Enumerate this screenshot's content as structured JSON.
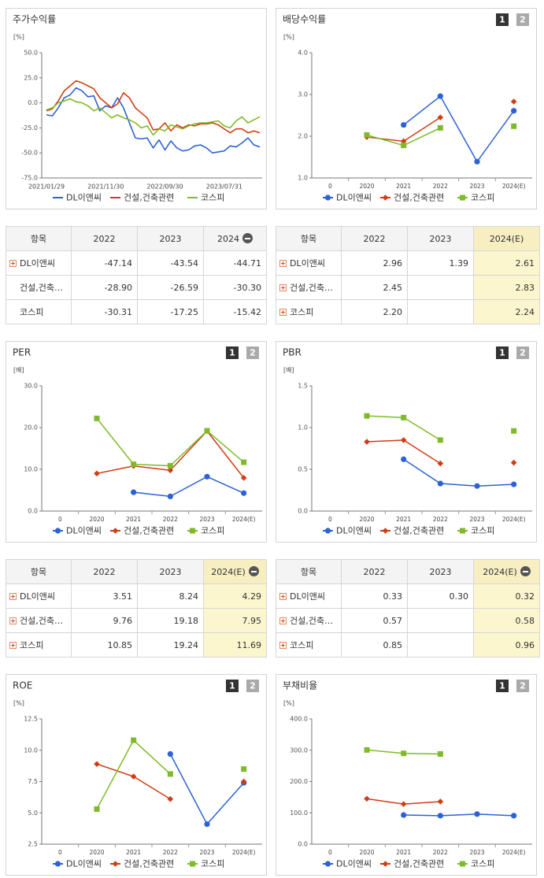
{
  "chart_data": [
    {
      "type": "line",
      "title": "주가수익률",
      "unit": "[%]",
      "categories": [
        "2021/01/29",
        null,
        null,
        null,
        null,
        null,
        null,
        null,
        null,
        null,
        "2021/11/30",
        null,
        null,
        null,
        null,
        null,
        null,
        null,
        null,
        null,
        "2022/09/30",
        null,
        null,
        null,
        null,
        null,
        null,
        null,
        null,
        null,
        "2023/07/31",
        null,
        null,
        null,
        null,
        null,
        null
      ],
      "series": [
        {
          "name": "DL이앤씨",
          "color": "#2c62d6",
          "values": [
            -12,
            -13,
            -5,
            5,
            8,
            15,
            12,
            6,
            7,
            -8,
            -3,
            -5,
            5,
            -5,
            -20,
            -35,
            -36,
            -35,
            -45,
            -37,
            -47,
            -38,
            -45,
            -48,
            -47,
            -43,
            -42,
            -45,
            -50,
            -49,
            -48,
            -43,
            -44,
            -40,
            -35,
            -42,
            -44
          ]
        },
        {
          "name": "건설,건축관련",
          "color": "#d03d14",
          "values": [
            -8,
            -6,
            2,
            12,
            17,
            22,
            20,
            17,
            14,
            5,
            0,
            -5,
            -1,
            10,
            5,
            -5,
            -10,
            -15,
            -27,
            -26,
            -20,
            -28,
            -22,
            -25,
            -22,
            -23,
            -21,
            -21,
            -20,
            -22,
            -26,
            -30,
            -26,
            -26,
            -30,
            -28,
            -30
          ]
        },
        {
          "name": "코스피",
          "color": "#7fba2a",
          "values": [
            -7,
            -5,
            0,
            2,
            4,
            1,
            0,
            -3,
            -8,
            -5,
            -10,
            -15,
            -12,
            -15,
            -17,
            -20,
            -25,
            -23,
            -32,
            -26,
            -28,
            -22,
            -24,
            -26,
            -23,
            -21,
            -20,
            -20,
            -19,
            -18,
            -23,
            -25,
            -18,
            -14,
            -20,
            -17,
            -14
          ]
        }
      ],
      "ylim": [
        -75,
        50
      ],
      "yticks": [
        {
          "value": 50,
          "label": "50.0"
        },
        {
          "value": 25,
          "label": "25.0"
        },
        {
          "value": 0,
          "label": "0.0"
        },
        {
          "value": -25,
          "label": "-25.0"
        },
        {
          "value": -50,
          "label": "-50.0"
        },
        {
          "value": -75,
          "label": "-75.0"
        }
      ],
      "legend": "bottom"
    },
    {
      "type": "line-marker",
      "title": "배당수익률",
      "buttons": [
        "1",
        "2"
      ],
      "unit": "[%]",
      "categories": [
        "0",
        "2020",
        "2021",
        "2022",
        "2023",
        "2024(E)"
      ],
      "series": [
        {
          "name": "DL이앤씨",
          "color": "#2c62d6",
          "marker": "circle",
          "values": [
            null,
            null,
            2.27,
            2.96,
            1.39,
            2.61
          ]
        },
        {
          "name": "건설,건축관련",
          "color": "#d03d14",
          "marker": "diamond",
          "values": [
            null,
            1.98,
            1.88,
            2.45,
            null,
            2.83
          ]
        },
        {
          "name": "코스피",
          "color": "#7fba2a",
          "marker": "square",
          "values": [
            null,
            2.03,
            1.78,
            2.2,
            null,
            2.24
          ]
        }
      ],
      "ylim": [
        1,
        4
      ],
      "yticks": [
        {
          "value": 4,
          "label": "4.0"
        },
        {
          "value": 3,
          "label": "3.0"
        },
        {
          "value": 2,
          "label": "2.0"
        },
        {
          "value": 1,
          "label": "1.0"
        }
      ],
      "legend": "bottom"
    },
    {
      "type": "line-marker",
      "title": "PER",
      "buttons": [
        "1",
        "2"
      ],
      "unit": "[배]",
      "categories": [
        "0",
        "2020",
        "2021",
        "2022",
        "2023",
        "2024(E)"
      ],
      "series": [
        {
          "name": "DL이앤씨",
          "color": "#2c62d6",
          "marker": "circle",
          "values": [
            null,
            null,
            4.5,
            3.51,
            8.24,
            4.29
          ]
        },
        {
          "name": "건설,건축관련",
          "color": "#d03d14",
          "marker": "diamond",
          "values": [
            null,
            9,
            10.8,
            9.76,
            19.18,
            7.95
          ]
        },
        {
          "name": "코스피",
          "color": "#7fba2a",
          "marker": "square",
          "values": [
            null,
            22.2,
            11.2,
            10.85,
            19.24,
            11.69
          ]
        }
      ],
      "ylim": [
        0,
        30
      ],
      "yticks": [
        {
          "value": 30,
          "label": "30.0"
        },
        {
          "value": 20,
          "label": "20.0"
        },
        {
          "value": 10,
          "label": "10.0"
        },
        {
          "value": 0,
          "label": "0.0"
        }
      ],
      "legend": "bottom"
    },
    {
      "type": "line-marker",
      "title": "PBR",
      "buttons": [
        "1",
        "2"
      ],
      "unit": "[배]",
      "categories": [
        "0",
        "2020",
        "2021",
        "2022",
        "2023",
        "2024(E)"
      ],
      "series": [
        {
          "name": "DL이앤씨",
          "color": "#2c62d6",
          "marker": "circle",
          "values": [
            null,
            null,
            0.62,
            0.33,
            0.3,
            0.32
          ]
        },
        {
          "name": "건설,건축관련",
          "color": "#d03d14",
          "marker": "diamond",
          "values": [
            null,
            0.83,
            0.85,
            0.57,
            null,
            0.58
          ]
        },
        {
          "name": "코스피",
          "color": "#7fba2a",
          "marker": "square",
          "values": [
            null,
            1.14,
            1.12,
            0.85,
            null,
            0.96
          ]
        }
      ],
      "ylim": [
        0,
        1.5
      ],
      "yticks": [
        1.5,
        {
          "value": 1,
          "label": "1.0"
        },
        0.5,
        {
          "value": 0,
          "label": "0.0"
        }
      ],
      "legend": "bottom"
    },
    {
      "type": "line-marker",
      "title": "ROE",
      "buttons": [
        "1",
        "2"
      ],
      "unit": "[%]",
      "categories": [
        "0",
        "2020",
        "2021",
        "2022",
        "2023",
        "2024(E)"
      ],
      "series": [
        {
          "name": "DL이앤씨",
          "color": "#2c62d6",
          "marker": "circle",
          "values": [
            null,
            null,
            null,
            9.7,
            4.1,
            7.4
          ]
        },
        {
          "name": "건설,건축관련",
          "color": "#d03d14",
          "marker": "diamond",
          "values": [
            null,
            8.9,
            7.9,
            6.1,
            null,
            7.5
          ]
        },
        {
          "name": "코스피",
          "color": "#7fba2a",
          "marker": "square",
          "values": [
            null,
            5.3,
            10.8,
            8.1,
            null,
            8.5
          ]
        }
      ],
      "ylim": [
        2.5,
        12.5
      ],
      "yticks": [
        12.5,
        {
          "value": 10,
          "label": "10.0"
        },
        7.5,
        {
          "value": 5,
          "label": "5.0"
        },
        2.5
      ],
      "legend": "bottom"
    },
    {
      "type": "line-marker",
      "title": "부채비율",
      "buttons": [
        "1",
        "2"
      ],
      "unit": "[%]",
      "categories": [
        "0",
        "2020",
        "2021",
        "2022",
        "2023",
        "2024(E)"
      ],
      "series": [
        {
          "name": "DL이앤씨",
          "color": "#2c62d6",
          "marker": "circle",
          "values": [
            null,
            null,
            93,
            91,
            96,
            91
          ]
        },
        {
          "name": "건설,건축관련",
          "color": "#d03d14",
          "marker": "diamond",
          "values": [
            null,
            145,
            128,
            136,
            null,
            null
          ]
        },
        {
          "name": "코스피",
          "color": "#7fba2a",
          "marker": "square",
          "values": [
            null,
            301,
            290,
            288,
            null,
            null
          ]
        }
      ],
      "ylim": [
        0,
        400
      ],
      "yticks": [
        {
          "value": 400,
          "label": "400.0"
        },
        {
          "value": 300,
          "label": "300.0"
        },
        {
          "value": 200,
          "label": "200.0"
        },
        {
          "value": 100,
          "label": "100.0"
        },
        {
          "value": 0,
          "label": "0.0"
        }
      ],
      "legend": "bottom"
    }
  ],
  "tables": [
    {
      "header": [
        "항목",
        "2022",
        "2023",
        "2024"
      ],
      "collapse_icon": true,
      "highlight_last": false,
      "rows": [
        {
          "name": "DL이앤씨",
          "expandable": true,
          "values": [
            "-47.14",
            "-43.54",
            "-44.71"
          ]
        },
        {
          "name": "건설,건축…",
          "expandable": false,
          "values": [
            "-28.90",
            "-26.59",
            "-30.30"
          ]
        },
        {
          "name": "코스피",
          "expandable": false,
          "values": [
            "-30.31",
            "-17.25",
            "-15.42"
          ]
        }
      ]
    },
    {
      "header": [
        "항목",
        "2022",
        "2023",
        "2024(E)"
      ],
      "collapse_icon": false,
      "highlight_last": true,
      "rows": [
        {
          "name": "DL이앤씨",
          "expandable": true,
          "values": [
            "2.96",
            "1.39",
            "2.61"
          ]
        },
        {
          "name": "건설,건축…",
          "expandable": true,
          "values": [
            "2.45",
            null,
            "2.83"
          ]
        },
        {
          "name": "코스피",
          "expandable": true,
          "values": [
            "2.20",
            null,
            "2.24"
          ]
        }
      ]
    },
    {
      "header": [
        "항목",
        "2022",
        "2023",
        "2024(E)"
      ],
      "collapse_icon": true,
      "highlight_last": true,
      "rows": [
        {
          "name": "DL이앤씨",
          "expandable": true,
          "values": [
            "3.51",
            "8.24",
            "4.29"
          ]
        },
        {
          "name": "건설,건축…",
          "expandable": true,
          "values": [
            "9.76",
            "19.18",
            "7.95"
          ]
        },
        {
          "name": "코스피",
          "expandable": true,
          "values": [
            "10.85",
            "19.24",
            "11.69"
          ]
        }
      ]
    },
    {
      "header": [
        "항목",
        "2022",
        "2023",
        "2024(E)"
      ],
      "collapse_icon": true,
      "highlight_last": true,
      "rows": [
        {
          "name": "DL이앤씨",
          "expandable": true,
          "values": [
            "0.33",
            "0.30",
            "0.32"
          ]
        },
        {
          "name": "건설,건축…",
          "expandable": true,
          "values": [
            "0.57",
            null,
            "0.58"
          ]
        },
        {
          "name": "코스피",
          "expandable": true,
          "values": [
            "0.85",
            null,
            "0.96"
          ]
        }
      ]
    }
  ]
}
